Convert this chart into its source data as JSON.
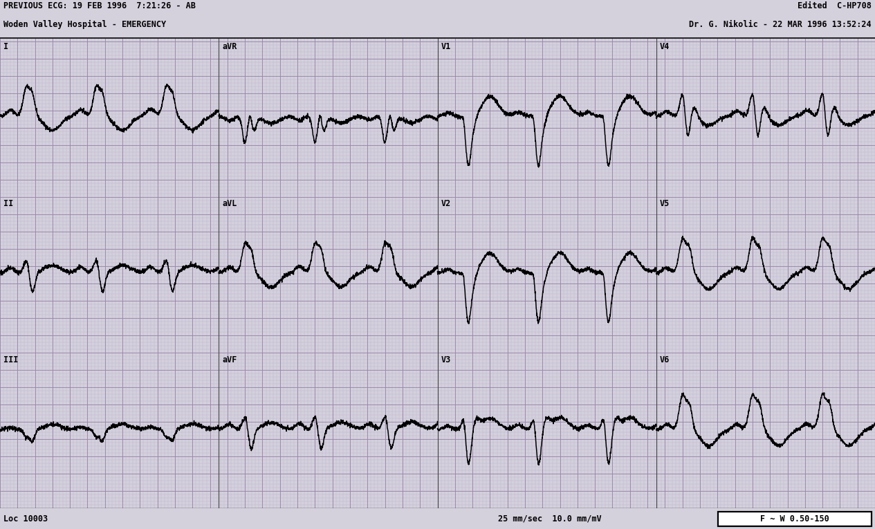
{
  "title_left_line1": "PREVIOUS ECG: 19 FEB 1996  7:21:26 - AB",
  "title_left_line2": "Woden Valley Hospital - EMERGENCY",
  "title_right_line1": "Edited  C-HP708",
  "title_right_line2": "Dr. G. Nikolic - 22 MAR 1996 13:52:24",
  "footer_left": "Loc 10003",
  "footer_right": "25 mm/sec  10.0 mm/mV",
  "footer_box": "F ~ W 0.50-150",
  "bg_color": "#d4d0dc",
  "grid_major_color": "#9988aa",
  "grid_minor_color": "#bbb0cc",
  "ecg_color": "#000000",
  "text_color": "#000000",
  "lead_layout": [
    [
      "I",
      "aVR",
      "V1",
      "V4"
    ],
    [
      "II",
      "aVL",
      "V2",
      "V5"
    ],
    [
      "III",
      "aVF",
      "V3",
      "V6"
    ]
  ]
}
